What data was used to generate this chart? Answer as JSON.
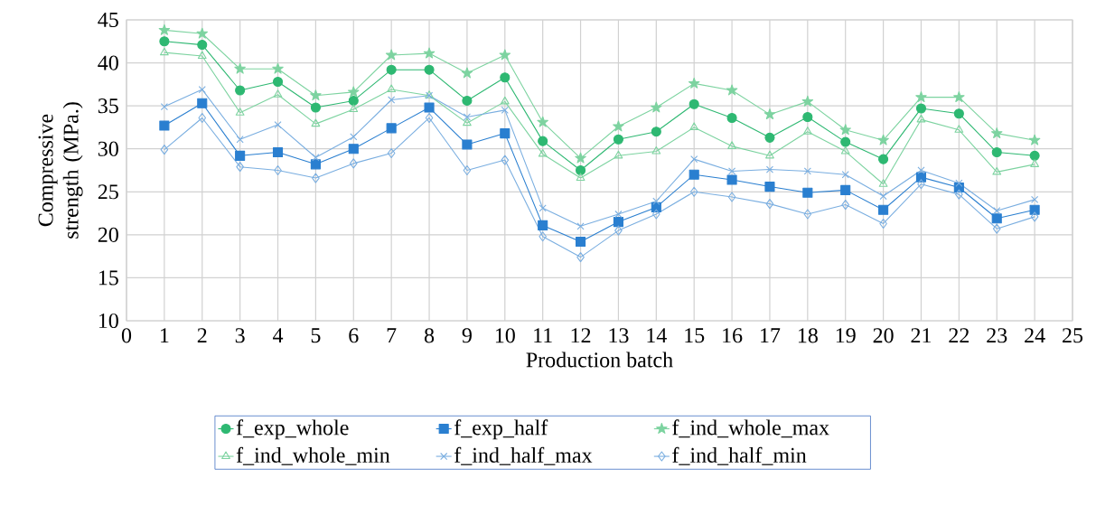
{
  "chart_data": {
    "type": "line",
    "xlabel": "Production batch",
    "ylabel": "Compressive strength (MPa.)",
    "x": [
      1,
      2,
      3,
      4,
      5,
      6,
      7,
      8,
      9,
      10,
      11,
      12,
      13,
      14,
      15,
      16,
      17,
      18,
      19,
      20,
      21,
      22,
      23,
      24
    ],
    "xlim": [
      0,
      25
    ],
    "xticks": [
      0,
      1,
      2,
      3,
      4,
      5,
      6,
      7,
      8,
      9,
      10,
      11,
      12,
      13,
      14,
      15,
      16,
      17,
      18,
      19,
      20,
      21,
      22,
      23,
      24,
      25
    ],
    "ylim": [
      10,
      45
    ],
    "yticks": [
      10,
      15,
      20,
      25,
      30,
      35,
      40,
      45
    ],
    "grid": true,
    "legend": "bottom",
    "line_style": "solid",
    "series": [
      {
        "name": "f_exp_whole",
        "color": "#2eb872",
        "marker": "circle",
        "values": [
          42.5,
          42.1,
          36.8,
          37.8,
          34.8,
          35.6,
          39.2,
          39.2,
          35.6,
          38.3,
          30.9,
          27.5,
          31.1,
          32.0,
          35.2,
          33.6,
          31.3,
          33.7,
          30.8,
          28.8,
          34.7,
          34.1,
          29.6,
          29.2
        ]
      },
      {
        "name": "f_exp_half",
        "color": "#2a7fd0",
        "marker": "square",
        "values": [
          32.7,
          35.3,
          29.2,
          29.6,
          28.2,
          30.0,
          32.4,
          34.8,
          30.5,
          31.8,
          21.1,
          19.2,
          21.5,
          23.2,
          27.0,
          26.4,
          25.6,
          24.9,
          25.2,
          22.9,
          26.7,
          25.5,
          21.9,
          22.9
        ]
      },
      {
        "name": "f_ind_whole_max",
        "color": "#7dd3a0",
        "marker": "star",
        "values": [
          43.8,
          43.4,
          39.3,
          39.3,
          36.2,
          36.6,
          40.9,
          41.1,
          38.8,
          40.9,
          33.1,
          28.9,
          32.6,
          34.8,
          37.6,
          36.8,
          34.0,
          35.5,
          32.2,
          31.0,
          36.0,
          36.0,
          31.8,
          31.0
        ]
      },
      {
        "name": "f_ind_whole_min",
        "color": "#7dd3a0",
        "marker": "triangle",
        "values": [
          41.2,
          40.8,
          34.2,
          36.3,
          32.9,
          34.6,
          36.9,
          36.2,
          33.0,
          35.5,
          29.4,
          26.6,
          29.2,
          29.7,
          32.5,
          30.3,
          29.2,
          32.0,
          29.7,
          25.9,
          33.4,
          32.2,
          27.3,
          28.2
        ]
      },
      {
        "name": "f_ind_half_max",
        "color": "#7aaee0",
        "marker": "cross",
        "values": [
          34.9,
          36.9,
          31.1,
          32.8,
          29.0,
          31.4,
          35.7,
          36.2,
          33.7,
          34.5,
          23.1,
          21.0,
          22.4,
          23.9,
          28.8,
          27.4,
          27.6,
          27.4,
          27.0,
          24.5,
          27.5,
          26.0,
          22.8,
          24.1
        ]
      },
      {
        "name": "f_ind_half_min",
        "color": "#7aaee0",
        "marker": "diamond",
        "values": [
          29.9,
          33.6,
          27.9,
          27.5,
          26.6,
          28.3,
          29.5,
          33.6,
          27.5,
          28.7,
          19.8,
          17.4,
          20.5,
          22.4,
          25.0,
          24.4,
          23.6,
          22.4,
          23.5,
          21.3,
          25.9,
          24.7,
          20.7,
          22.1
        ]
      }
    ]
  }
}
